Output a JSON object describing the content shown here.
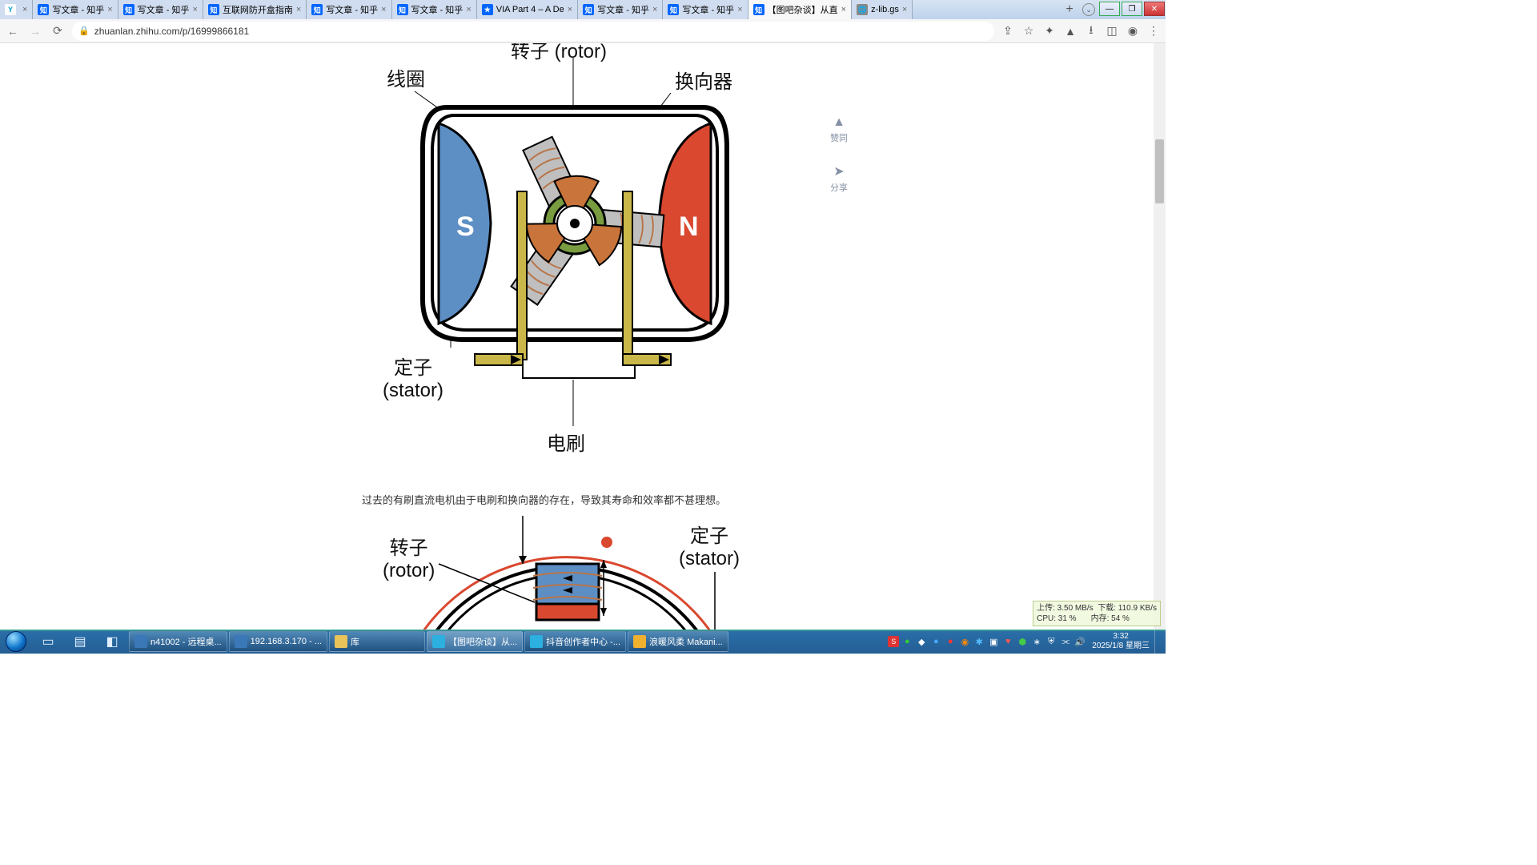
{
  "tabs": [
    {
      "title": "",
      "fav": "y"
    },
    {
      "title": "写文章 - 知乎",
      "fav": "z"
    },
    {
      "title": "写文章 - 知乎",
      "fav": "z"
    },
    {
      "title": "互联网防开盒指南",
      "fav": "z"
    },
    {
      "title": "写文章 - 知乎",
      "fav": "z"
    },
    {
      "title": "写文章 - 知乎",
      "fav": "z"
    },
    {
      "title": "VIA Part 4 – A De",
      "fav": "v"
    },
    {
      "title": "写文章 - 知乎",
      "fav": "z"
    },
    {
      "title": "写文章 - 知乎",
      "fav": "z"
    },
    {
      "title": "【图吧杂谈】从直",
      "fav": "z",
      "active": true
    },
    {
      "title": "z-lib.gs",
      "fav": "g"
    }
  ],
  "url": "zhuanlan.zhihu.com/p/16999866181",
  "float": {
    "like": "赞同",
    "share": "分享"
  },
  "diagram1": {
    "labels": {
      "rotor": "转子 (rotor)",
      "coil": "线圈",
      "commutator": "换向器",
      "stator": "定子\n(stator)",
      "brush": "电刷",
      "S": "S",
      "N": "N"
    },
    "colors": {
      "s_pole": "#5d8fc5",
      "n_pole": "#d9482f",
      "commutator_ring": "#6d8f3a",
      "commutator_seg": "#c9743a",
      "brush_bar": "#c9b74a",
      "rotor_pole": "#bfbfbf",
      "coil_wire": "#b8754a",
      "outline": "#000000"
    }
  },
  "article_text": "过去的有刷直流电机由于电刷和换向器的存在，导致其寿命和效率都不甚理想。",
  "diagram2": {
    "labels": {
      "rotor": "转子\n(rotor)",
      "stator": "定子\n(stator)"
    },
    "colors": {
      "top": "#5d8fc5",
      "bottom": "#d9482f",
      "outline": "#000",
      "coil": "#b8754a",
      "ring": "#d9482f"
    }
  },
  "netmon": {
    "up": "上传: 3.50 MB/s",
    "down": "下载: 110.9 KB/s",
    "cpu": "CPU: 31 %",
    "mem": "内存: 54 %"
  },
  "taskbar_items": [
    {
      "label": "n41002 - 远程桌...",
      "color": "#3a78b8"
    },
    {
      "label": "192.168.3.170 - ...",
      "color": "#3a78b8"
    },
    {
      "label": "库",
      "color": "#e8c35a"
    },
    {
      "label": "【图吧杂谈】从...",
      "color": "#2bb0e0",
      "active": true
    },
    {
      "label": "抖音创作者中心 -...",
      "color": "#2bb0e0"
    },
    {
      "label": "浪暖风柔 Makani...",
      "color": "#f0b030"
    }
  ],
  "clock": {
    "time": "3:32",
    "date": "2025/1/8 星期三"
  }
}
